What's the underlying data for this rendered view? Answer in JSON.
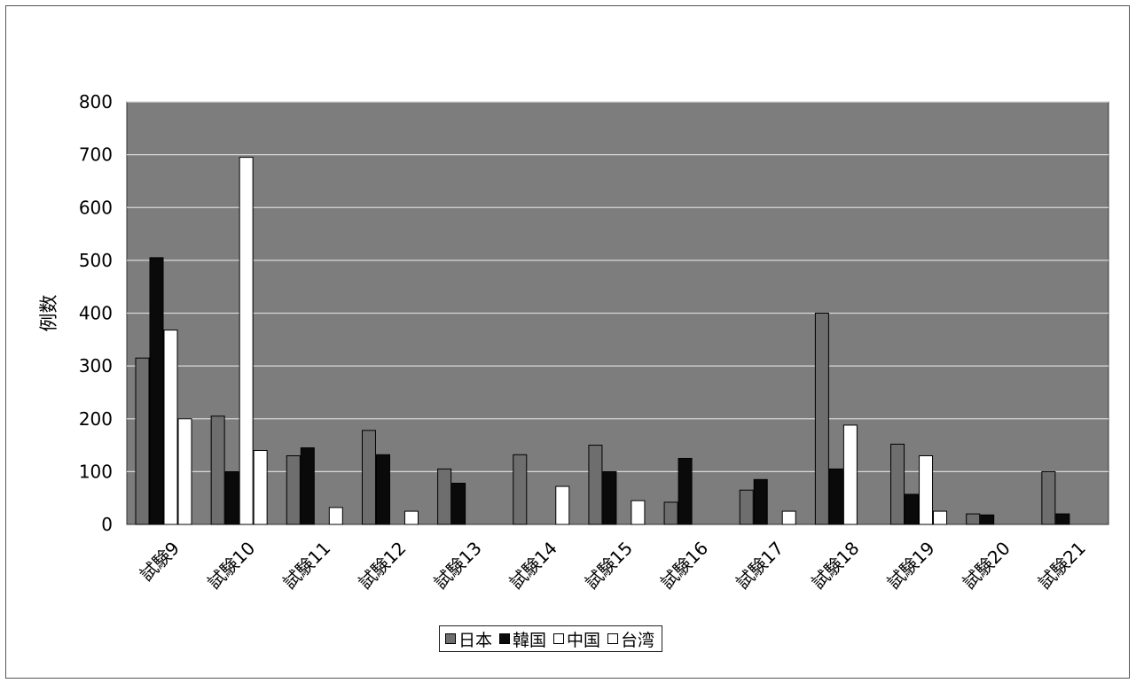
{
  "chart_data": {
    "type": "bar",
    "title": "",
    "xlabel": "",
    "ylabel": "例数",
    "ylim": [
      0,
      800
    ],
    "yticks": [
      0,
      100,
      200,
      300,
      400,
      500,
      600,
      700,
      800
    ],
    "grid": true,
    "legend_position": "bottom",
    "categories": [
      "試験9",
      "試験10",
      "試験11",
      "試験12",
      "試験13",
      "試験14",
      "試験15",
      "試験16",
      "試験17",
      "試験18",
      "試験19",
      "試験20",
      "試験21"
    ],
    "series": [
      {
        "name": "日本",
        "color": "#6e6e6e",
        "values": [
          315,
          205,
          130,
          178,
          105,
          132,
          150,
          42,
          65,
          400,
          152,
          20,
          100
        ]
      },
      {
        "name": "韓国",
        "color": "#0a0a0a",
        "values": [
          505,
          100,
          145,
          132,
          78,
          0,
          100,
          125,
          85,
          105,
          57,
          18,
          20
        ]
      },
      {
        "name": "中国",
        "color": "#ffffff",
        "values": [
          368,
          695,
          0,
          0,
          0,
          0,
          0,
          0,
          0,
          188,
          130,
          0,
          0
        ]
      },
      {
        "name": "台湾",
        "color": "#ffffff",
        "values": [
          200,
          140,
          32,
          25,
          0,
          72,
          45,
          0,
          25,
          0,
          25,
          0,
          0
        ]
      }
    ]
  }
}
